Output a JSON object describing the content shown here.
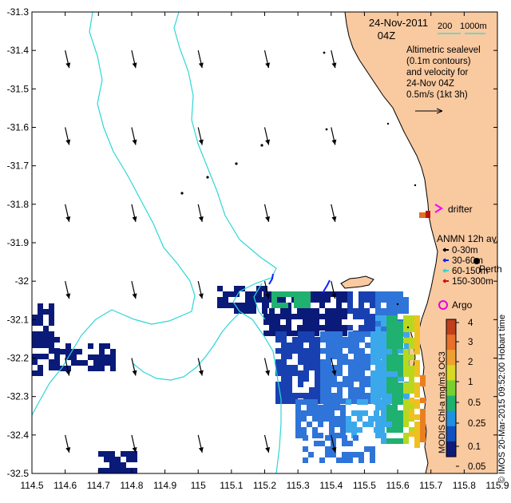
{
  "header": {
    "date": "24-Nov-2011",
    "time": "04Z"
  },
  "scale_bar": {
    "label_200": "200",
    "label_1000": "1000m"
  },
  "annotation": {
    "lines": [
      "Altimetric sealevel",
      "(0.1m contours)",
      "and velocity for",
      "24-Nov 04Z",
      "0.5m/s (1kt 3h)"
    ]
  },
  "axes": {
    "x_ticks": [
      "114.5",
      "114.6",
      "114.7",
      "114.8",
      "114.9",
      "115",
      "115.1",
      "115.2",
      "115.3",
      "115.4",
      "115.5",
      "115.6",
      "115.7",
      "115.8",
      "115.9"
    ],
    "y_ticks": [
      "-31.3",
      "-31.4",
      "-31.5",
      "-31.6",
      "-31.7",
      "-31.8",
      "-31.9",
      "-32",
      "-32.1",
      "-32.2",
      "-32.3",
      "-32.4",
      "-32.5"
    ]
  },
  "legend": {
    "drifter": "drifter",
    "anmn_title": "ANMN 12h av.",
    "anmn_items": [
      "0-30m",
      "30-60m",
      "60-150m",
      "150-300m"
    ],
    "perth": "Perth",
    "argo": "Argo"
  },
  "colorbar": {
    "ticks": [
      "4",
      "3",
      "2",
      "1",
      "0.5",
      "0.25",
      "0.1",
      "0.05"
    ],
    "colors": [
      "#c0401a",
      "#e8702a",
      "#f0a030",
      "#d8d820",
      "#78d030",
      "#20b070",
      "#2090e0",
      "#1050c0",
      "#101a78"
    ]
  },
  "side_text": {
    "imos": "© IMOS 20-Mar-2015 09:52:00 Hobart time",
    "modis": "MODIS Chl-a mg/m3 OC3"
  },
  "colors": {
    "land": "#f9c9a0",
    "contour": "#2ed6d6",
    "drifter": "#ff00ff",
    "argo": "#e600e6"
  },
  "chart_data": {
    "type": "map",
    "xlim": [
      114.5,
      115.9
    ],
    "ylim": [
      -32.5,
      -31.3
    ],
    "xlabel": "",
    "ylabel": "",
    "vectors": [
      {
        "lon": 114.6,
        "lat": -31.4
      },
      {
        "lon": 114.8,
        "lat": -31.4
      },
      {
        "lon": 115.0,
        "lat": -31.4
      },
      {
        "lon": 115.2,
        "lat": -31.4
      },
      {
        "lon": 115.4,
        "lat": -31.4
      },
      {
        "lon": 114.6,
        "lat": -31.6
      },
      {
        "lon": 114.8,
        "lat": -31.6
      },
      {
        "lon": 115.0,
        "lat": -31.6
      },
      {
        "lon": 115.2,
        "lat": -31.6
      },
      {
        "lon": 115.4,
        "lat": -31.6
      },
      {
        "lon": 114.6,
        "lat": -31.8
      },
      {
        "lon": 114.8,
        "lat": -31.8
      },
      {
        "lon": 115.0,
        "lat": -31.8
      },
      {
        "lon": 115.2,
        "lat": -31.8
      },
      {
        "lon": 115.4,
        "lat": -31.8
      },
      {
        "lon": 114.6,
        "lat": -32.0
      },
      {
        "lon": 114.8,
        "lat": -32.0
      },
      {
        "lon": 115.0,
        "lat": -32.0
      },
      {
        "lon": 115.2,
        "lat": -32.0
      },
      {
        "lon": 115.4,
        "lat": -32.0
      },
      {
        "lon": 114.6,
        "lat": -32.2
      },
      {
        "lon": 114.8,
        "lat": -32.2
      },
      {
        "lon": 115.0,
        "lat": -32.2
      },
      {
        "lon": 115.2,
        "lat": -32.2
      },
      {
        "lon": 115.4,
        "lat": -32.2
      },
      {
        "lon": 114.6,
        "lat": -32.4
      },
      {
        "lon": 114.8,
        "lat": -32.4
      },
      {
        "lon": 115.0,
        "lat": -32.4
      },
      {
        "lon": 115.2,
        "lat": -32.4
      },
      {
        "lon": 115.4,
        "lat": -32.4
      }
    ]
  }
}
